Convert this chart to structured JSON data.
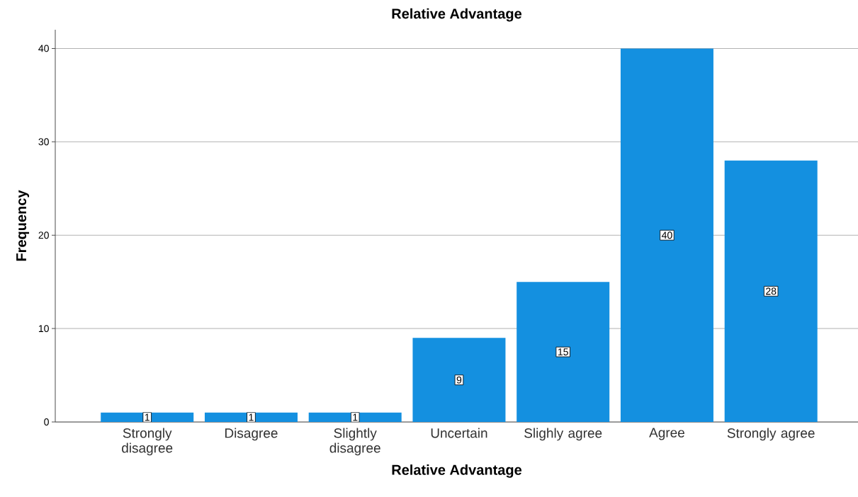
{
  "chart_data": {
    "type": "bar",
    "title": "Relative Advantage",
    "xlabel": "Relative Advantage",
    "ylabel": "Frequency",
    "categories": [
      "Strongly disagree",
      "Disagree",
      "Slightly disagree",
      "Uncertain",
      "Slighly agree",
      "Agree",
      "Strongly agree"
    ],
    "values": [
      1,
      1,
      1,
      9,
      15,
      40,
      28
    ],
    "color": "#1490e0",
    "ylim": [
      0,
      42
    ],
    "yticks": [
      0,
      10,
      20,
      30,
      40
    ],
    "grid": "y",
    "data_labels": true
  }
}
